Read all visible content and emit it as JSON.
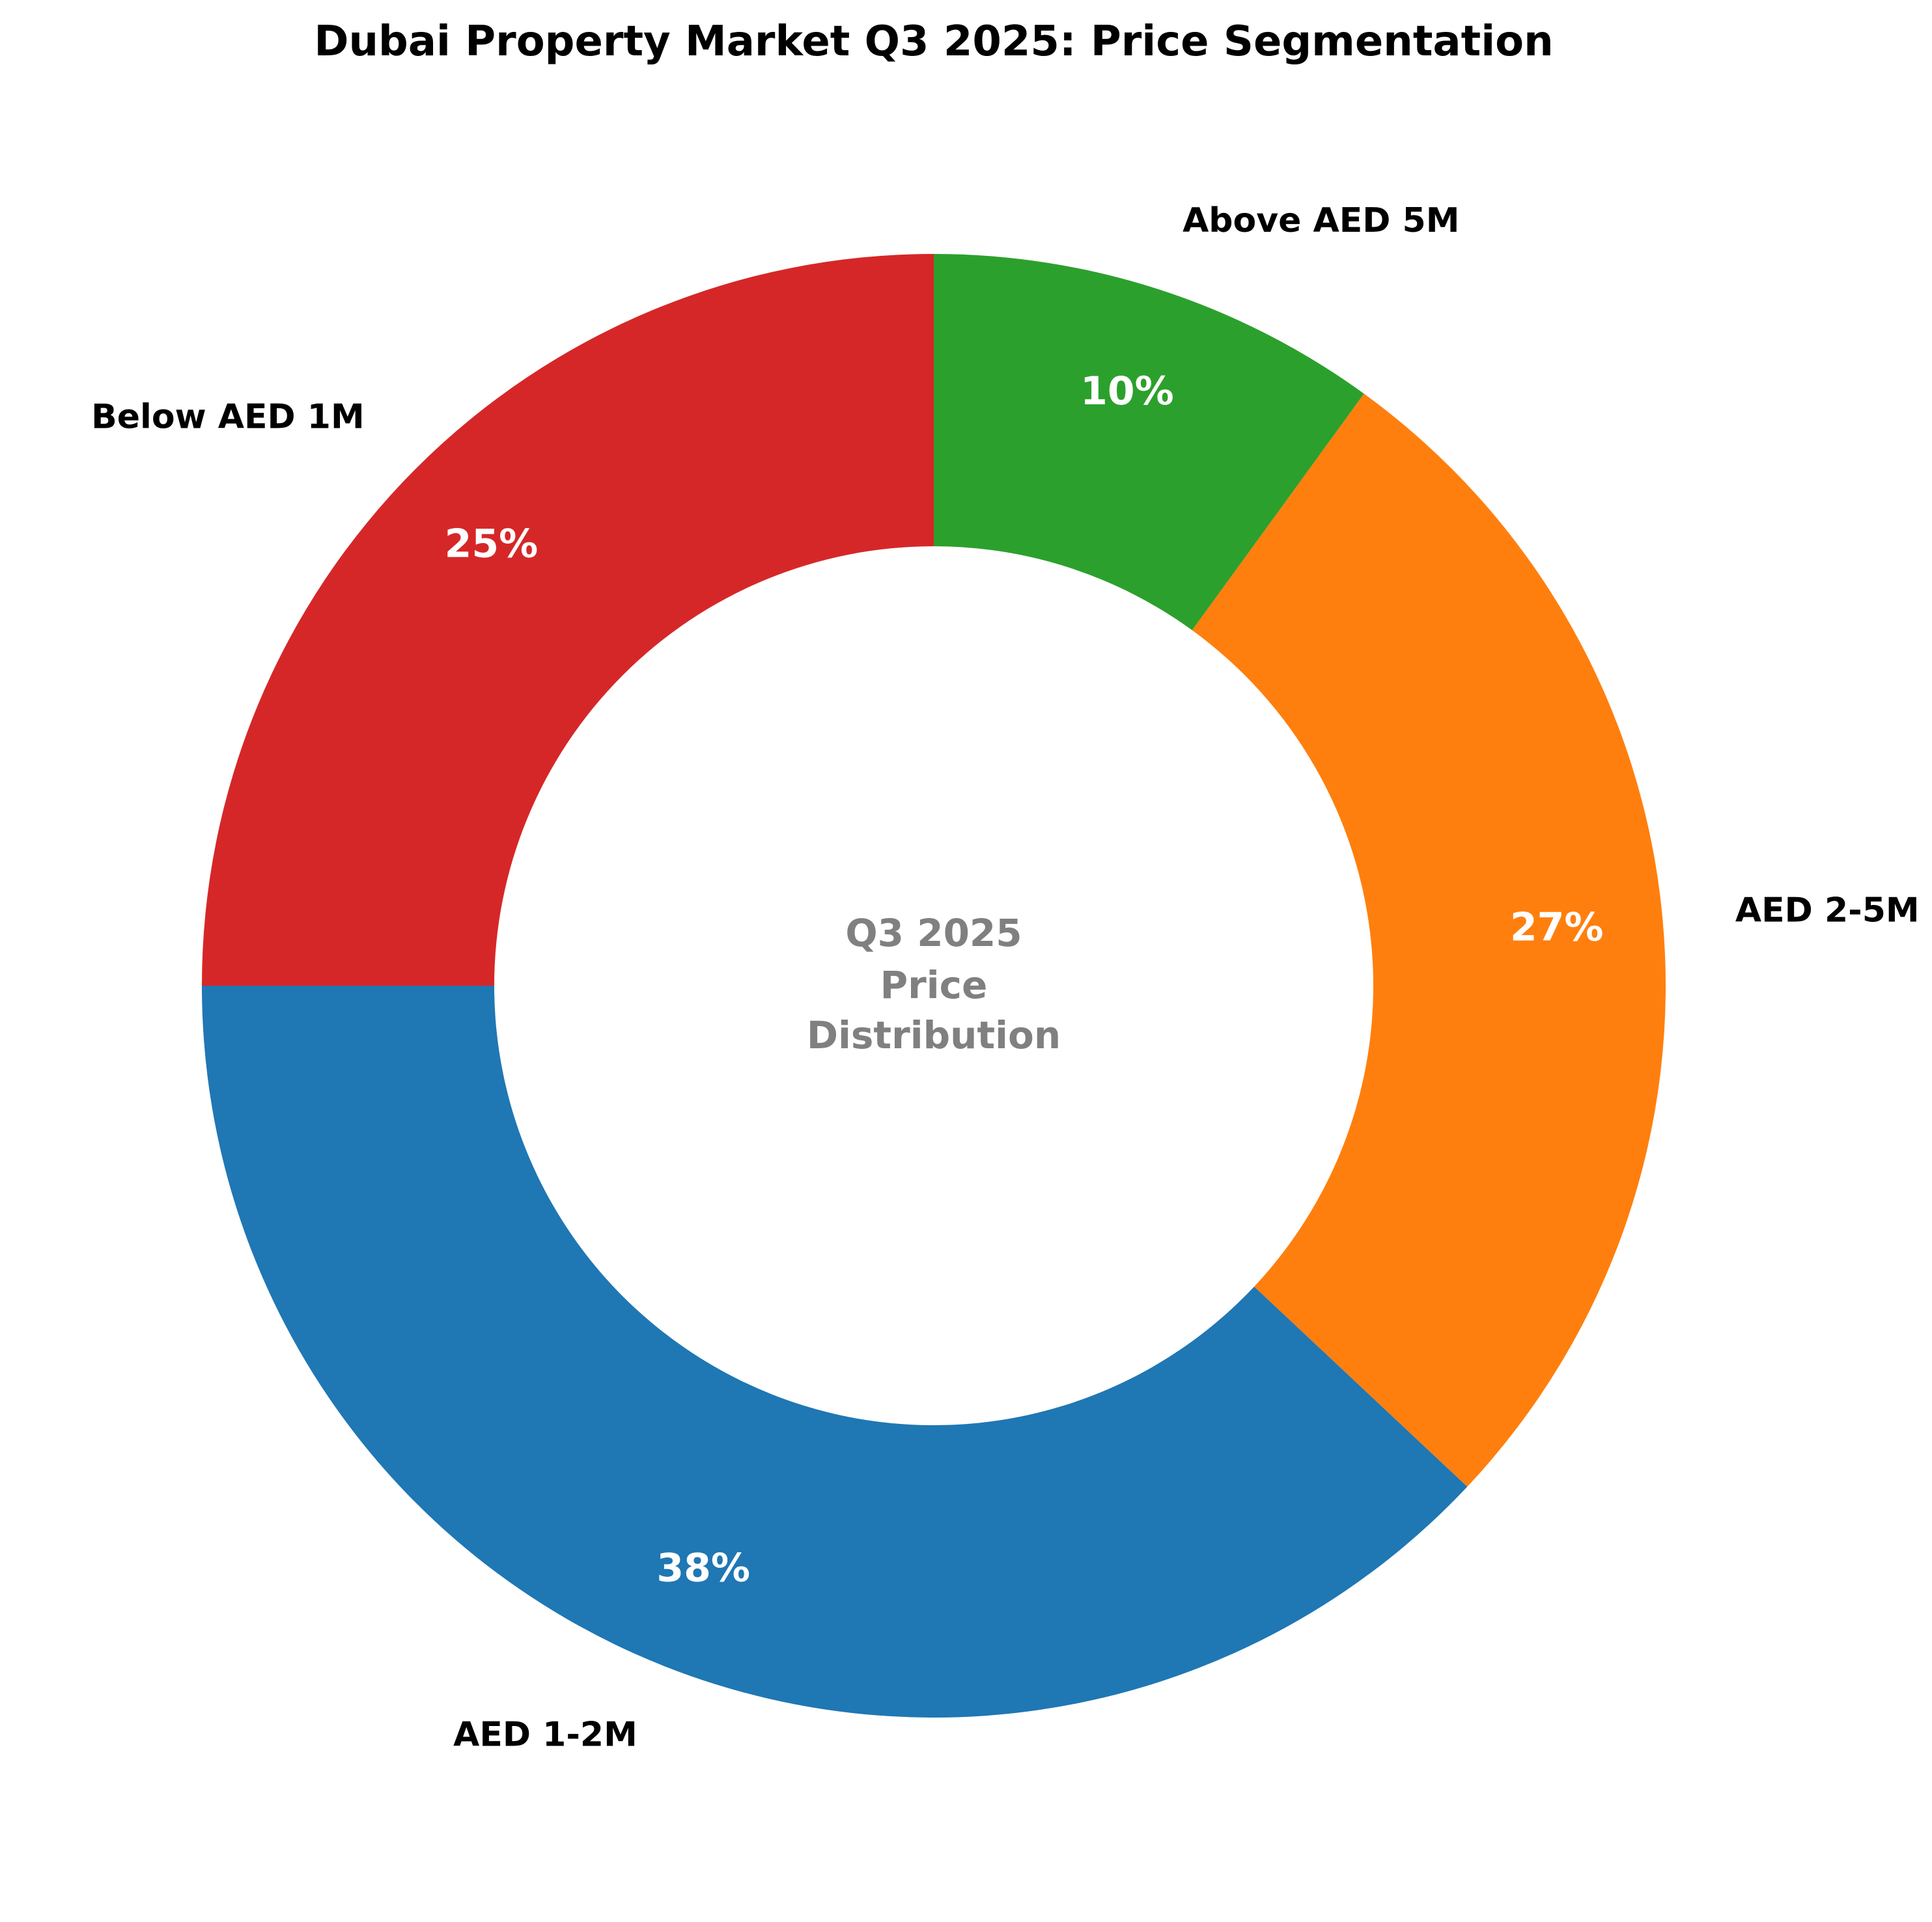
{
  "chart_data": {
    "type": "pie",
    "subtype": "donut",
    "title": "Dubai Property Market Q3 2025: Price Segmentation",
    "center_text": [
      "Q3 2025",
      "Price",
      "Distribution"
    ],
    "start_angle_deg": 90,
    "direction": "counterclockwise",
    "slices": [
      {
        "label": "Below AED 1M",
        "value": 25,
        "pct_label": "25%",
        "color": "#d62728"
      },
      {
        "label": "AED 1-2M",
        "value": 38,
        "pct_label": "38%",
        "color": "#1f77b4"
      },
      {
        "label": "AED 2-5M",
        "value": 27,
        "pct_label": "27%",
        "color": "#ff7f0e"
      },
      {
        "label": "Above AED 5M",
        "value": 10,
        "pct_label": "10%",
        "color": "#2ca02c"
      }
    ]
  }
}
